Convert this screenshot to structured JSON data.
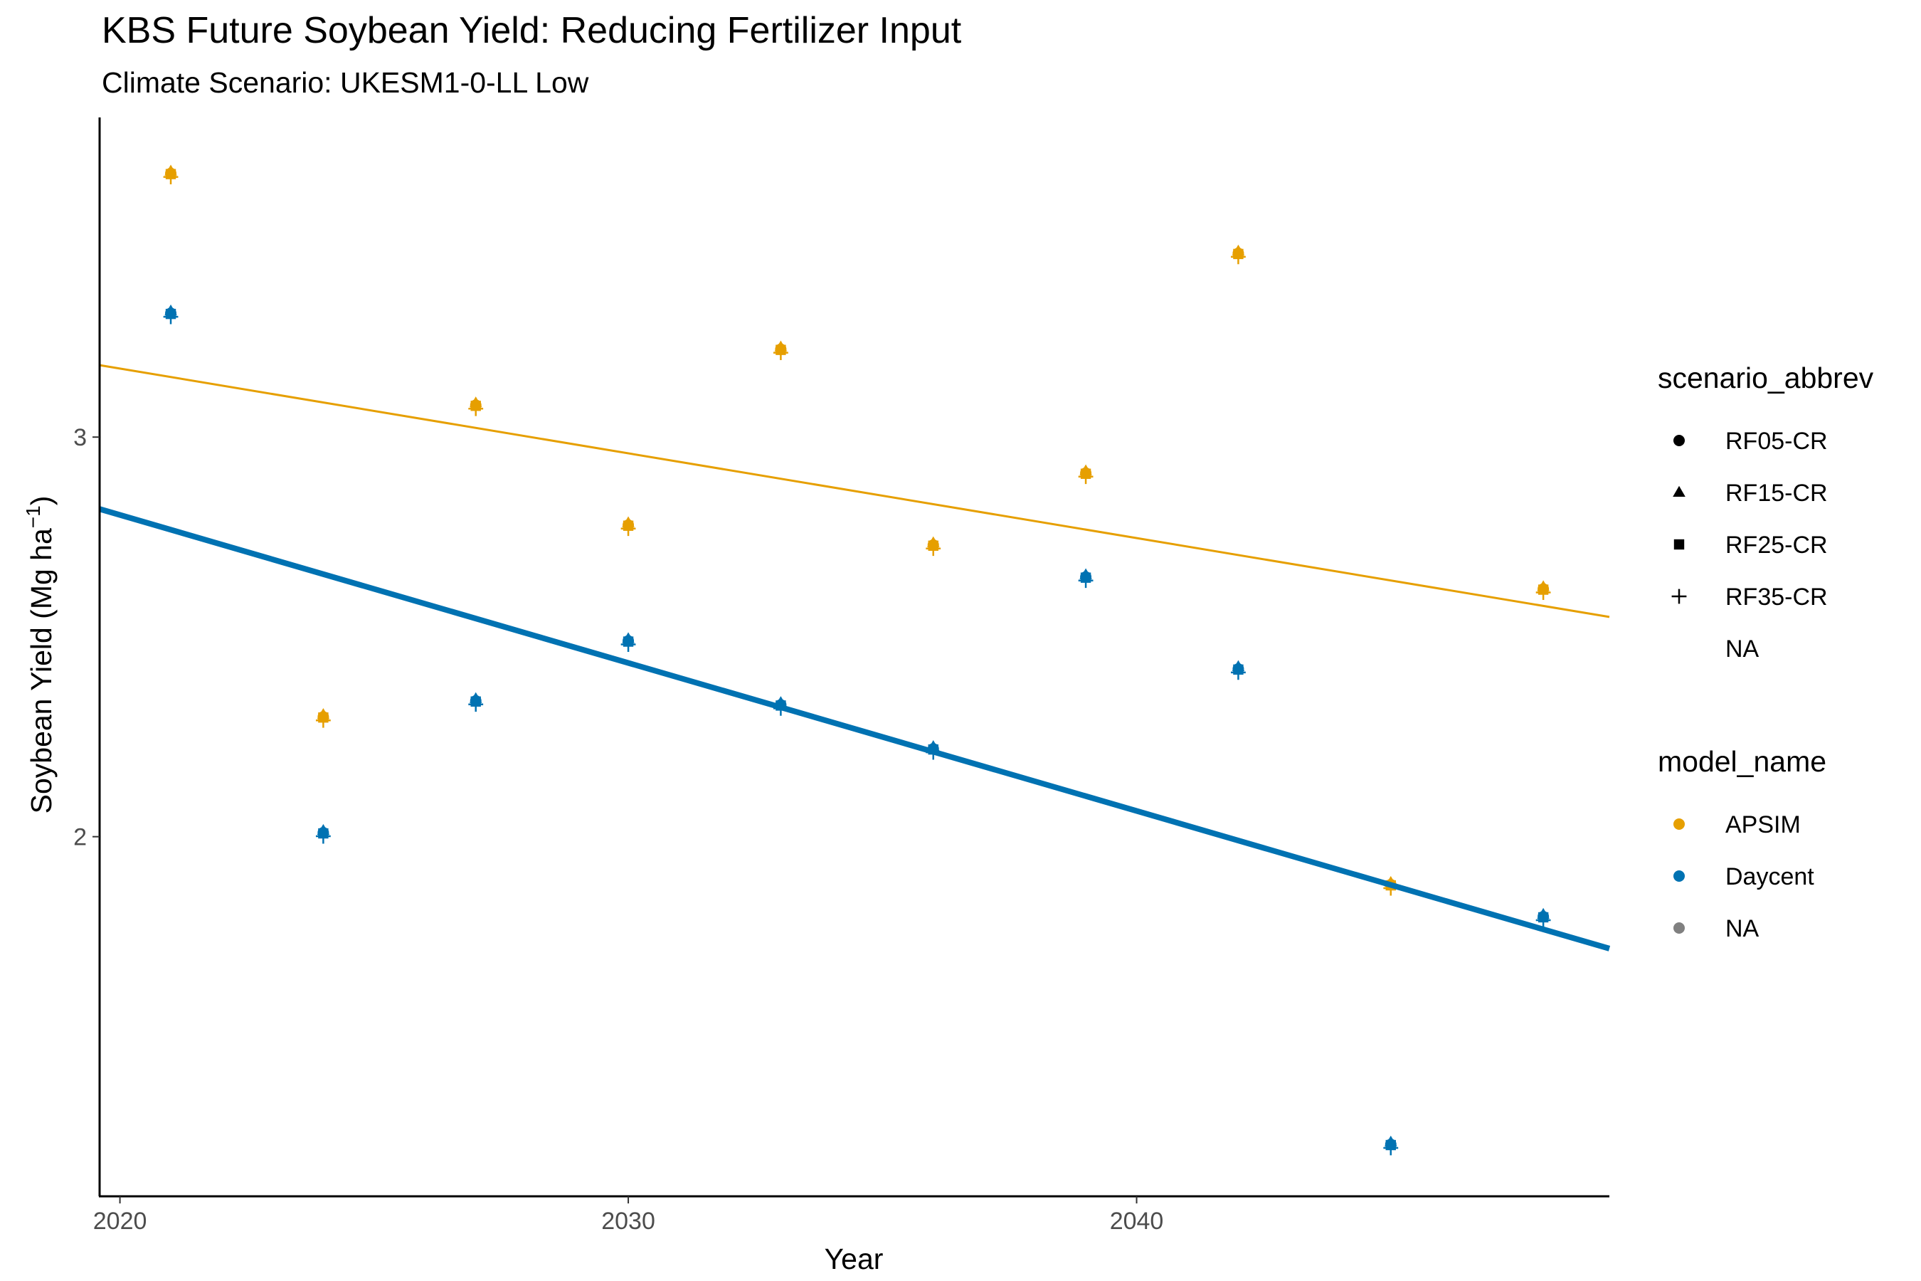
{
  "chart_data": {
    "type": "scatter",
    "title": "KBS Future Soybean Yield: Reducing Fertilizer Input",
    "subtitle": "Climate Scenario: UKESM1-0-LL Low",
    "xlabel": "Year",
    "ylabel": {
      "main": "Soybean Yield (Mg ha",
      "sup": "−1",
      "close": ")"
    },
    "xlim": [
      2019.6,
      2049.3
    ],
    "ylim": [
      1.1,
      3.8
    ],
    "xticks": [
      2020,
      2030,
      2040
    ],
    "yticks": [
      2,
      3
    ],
    "grid": false,
    "legend_position": "right",
    "colors": {
      "APSIM": "#E69F00",
      "Daycent": "#0072B2",
      "NA": "#808080"
    },
    "series": [
      {
        "name": "APSIM",
        "color": "#E69F00",
        "x": [
          2021,
          2024,
          2027,
          2030,
          2033,
          2036,
          2039,
          2042,
          2045,
          2048
        ],
        "y": [
          3.66,
          2.3,
          3.08,
          2.78,
          3.22,
          2.73,
          2.91,
          3.46,
          1.88,
          2.62
        ],
        "trend": {
          "x": [
            2019.6,
            2049.3
          ],
          "y": [
            3.18,
            2.55
          ],
          "stroke_width": 3
        }
      },
      {
        "name": "Daycent",
        "color": "#0072B2",
        "x": [
          2021,
          2024,
          2027,
          2030,
          2033,
          2036,
          2039,
          2042,
          2045,
          2048
        ],
        "y": [
          3.31,
          2.01,
          2.34,
          2.49,
          2.33,
          2.22,
          2.65,
          2.42,
          1.23,
          1.8
        ],
        "trend": {
          "x": [
            2019.6,
            2049.3
          ],
          "y": [
            2.82,
            1.72
          ],
          "stroke_width": 8
        }
      }
    ],
    "legends": [
      {
        "title": "scenario_abbrev",
        "items": [
          {
            "label": "RF05-CR",
            "shape": "circle"
          },
          {
            "label": "RF15-CR",
            "shape": "triangle"
          },
          {
            "label": "RF25-CR",
            "shape": "square"
          },
          {
            "label": "RF35-CR",
            "shape": "plus"
          },
          {
            "label": "NA",
            "shape": "none"
          }
        ]
      },
      {
        "title": "model_name",
        "items": [
          {
            "label": "APSIM",
            "color": "#E69F00"
          },
          {
            "label": "Daycent",
            "color": "#0072B2"
          },
          {
            "label": "NA",
            "color": "#808080"
          }
        ]
      }
    ]
  }
}
